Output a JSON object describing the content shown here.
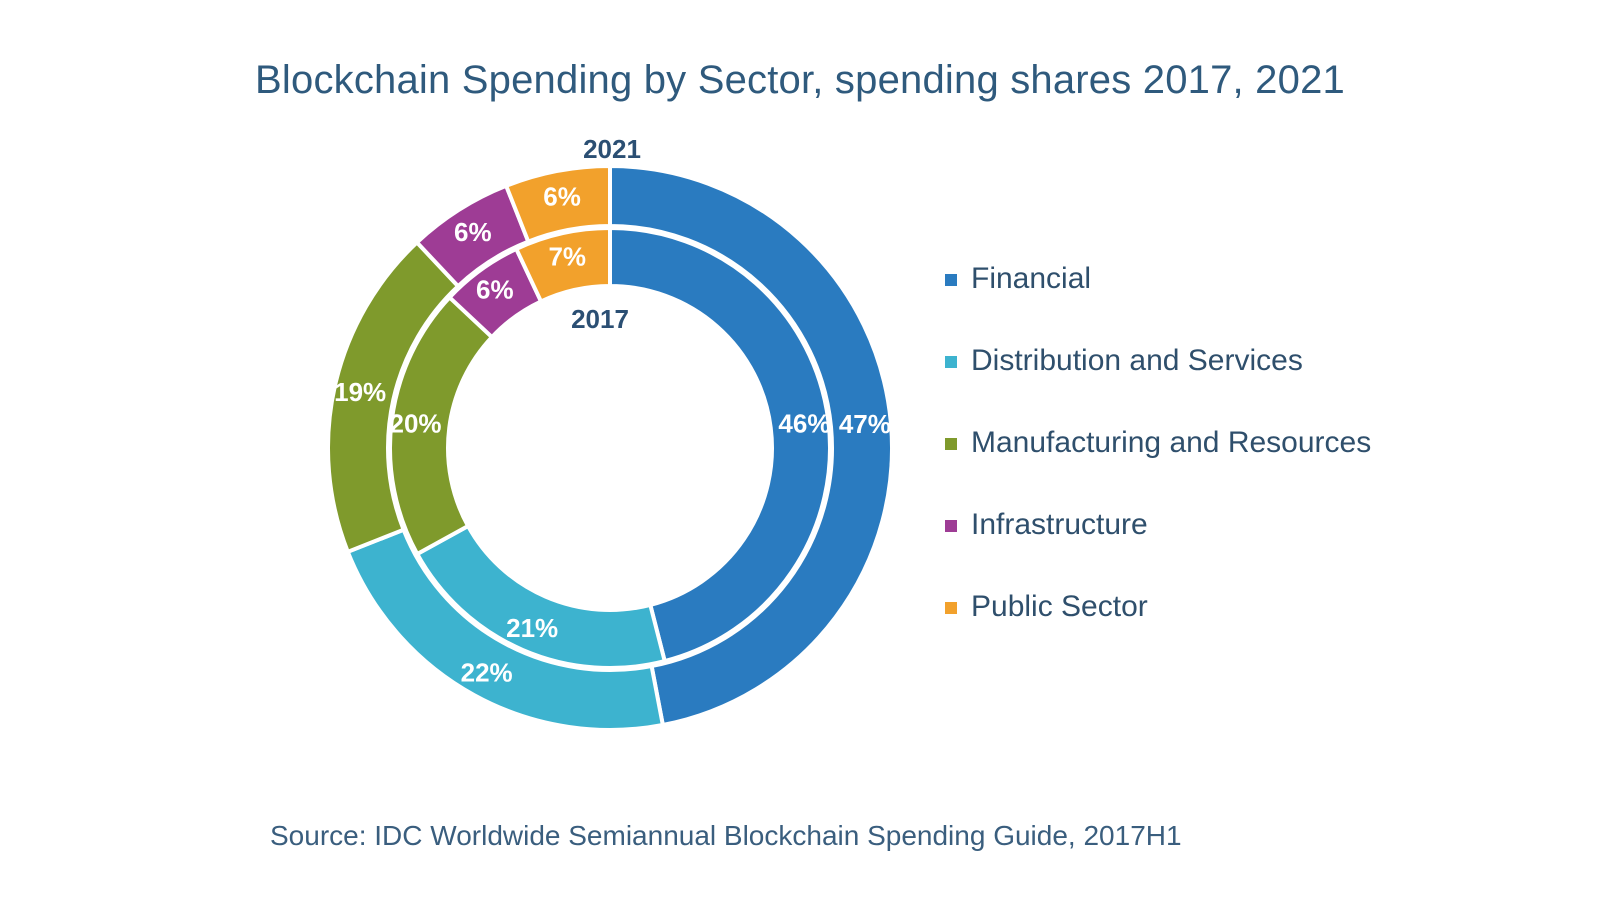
{
  "title": "Blockchain Spending by Sector, spending shares 2017, 2021",
  "source": "Source: IDC Worldwide Semiannual Blockchain Spending Guide, 2017H1",
  "chart_data": {
    "type": "pie",
    "subtype": "nested-donut",
    "title": "Blockchain Spending by Sector, spending shares 2017, 2021",
    "categories": [
      "Financial",
      "Distribution and Services",
      "Manufacturing and Resources",
      "Infrastructure",
      "Public Sector"
    ],
    "colors": [
      "#2a7bc0",
      "#3db3cf",
      "#7f9a2c",
      "#9e3c95",
      "#f2a12c"
    ],
    "series": [
      {
        "name": "2021",
        "ring": "outer",
        "values": [
          47,
          22,
          19,
          6,
          6
        ],
        "labels": [
          "47%",
          "22%",
          "19%",
          "6%",
          "6%"
        ]
      },
      {
        "name": "2017",
        "ring": "inner",
        "values": [
          46,
          21,
          20,
          6,
          7
        ],
        "labels": [
          "46%",
          "21%",
          "20%",
          "6%",
          "7%"
        ]
      }
    ],
    "ring_labels": {
      "outer": "2021",
      "inner": "2017"
    },
    "legend_position": "right"
  }
}
